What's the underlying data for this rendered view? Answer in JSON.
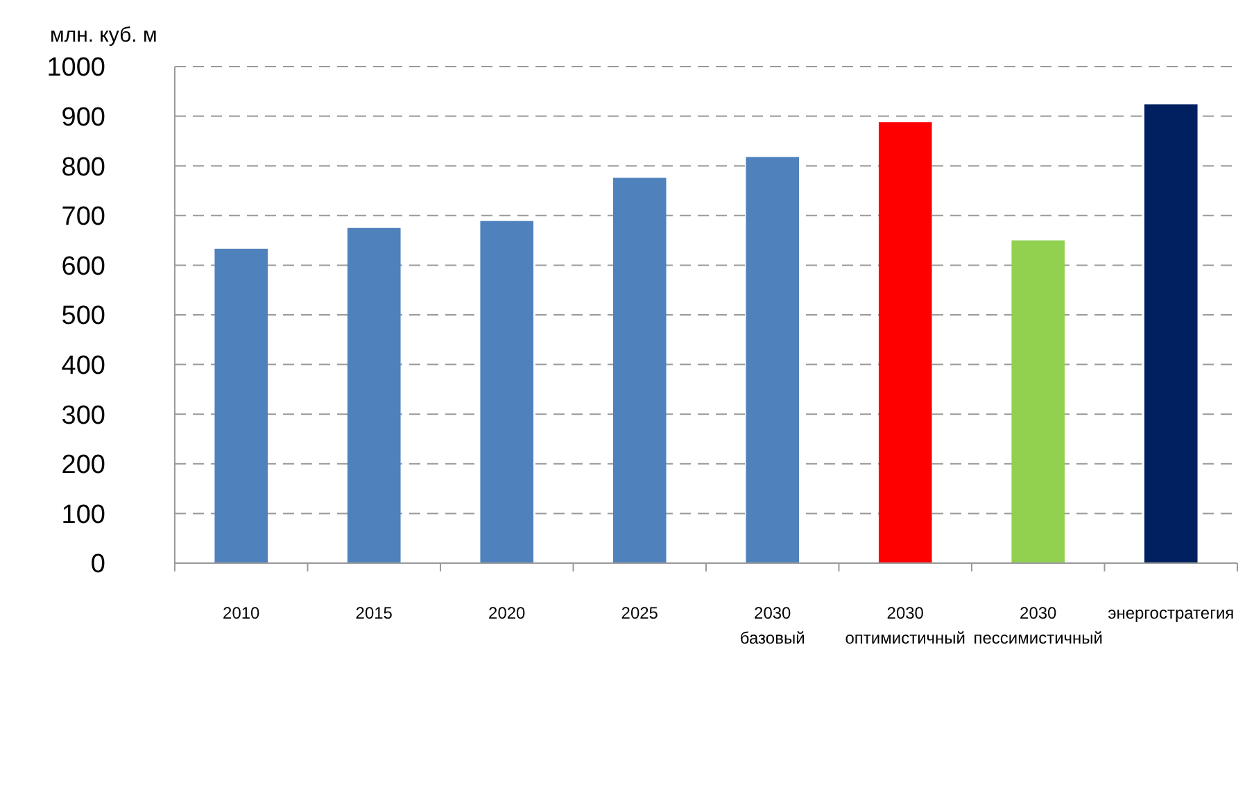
{
  "chart_data": {
    "type": "bar",
    "ylabel": "млн. куб. м",
    "categories": [
      "2010",
      "2015",
      "2020",
      "2025",
      "2030 базовый",
      "2030 оптимистичный",
      "2030 пессимистичный",
      "энергостратегия"
    ],
    "values": [
      633,
      675,
      689,
      776,
      818,
      888,
      650,
      924
    ],
    "colors": [
      "#4f81bd",
      "#4f81bd",
      "#4f81bd",
      "#4f81bd",
      "#4f81bd",
      "#ff0000",
      "#92d050",
      "#002060"
    ],
    "ylim": [
      0,
      1000
    ],
    "yticks": [
      0,
      100,
      200,
      300,
      400,
      500,
      600,
      700,
      800,
      900,
      1000
    ],
    "grid": "y"
  }
}
